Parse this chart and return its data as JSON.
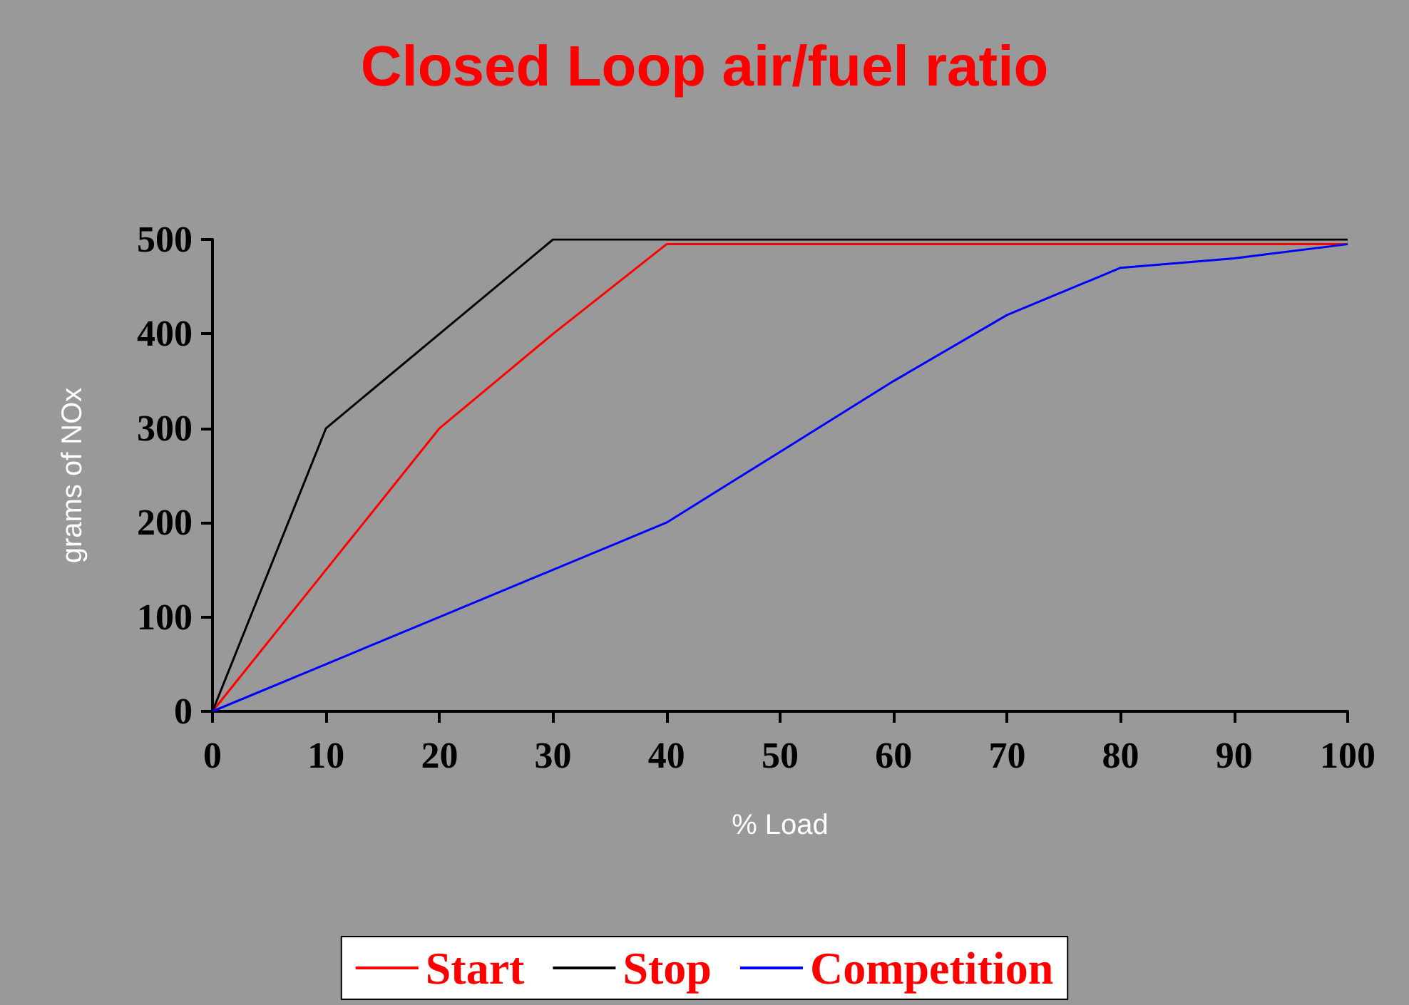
{
  "chart_data": {
    "type": "line",
    "title": "Closed Loop air/fuel ratio",
    "xlabel": "% Load",
    "ylabel": "grams of NOx",
    "x": [
      0,
      10,
      20,
      30,
      40,
      50,
      60,
      70,
      80,
      90,
      100
    ],
    "series": [
      {
        "name": "Start",
        "color": "#ff0000",
        "values": [
          0,
          150,
          300,
          400,
          495,
          495,
          495,
          495,
          495,
          495,
          495
        ]
      },
      {
        "name": "Stop",
        "color": "#000000",
        "values": [
          0,
          300,
          400,
          500,
          500,
          500,
          500,
          500,
          500,
          500,
          500
        ]
      },
      {
        "name": "Competition",
        "color": "#0000ff",
        "values": [
          0,
          50,
          100,
          150,
          200,
          275,
          350,
          420,
          470,
          480,
          495
        ]
      }
    ],
    "xlim": [
      0,
      100
    ],
    "xticks": [
      0,
      10,
      20,
      30,
      40,
      50,
      60,
      70,
      80,
      90,
      100
    ],
    "ylim": [
      0,
      500
    ],
    "yticks": [
      0,
      100,
      200,
      300,
      400,
      500
    ],
    "grid": false,
    "legend": "bottom",
    "marker": "none",
    "line_style": "solid"
  }
}
